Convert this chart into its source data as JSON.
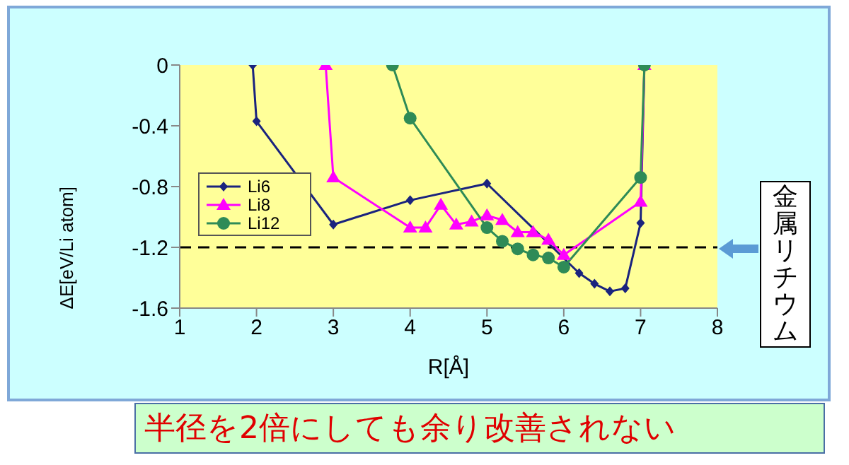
{
  "chart_data": {
    "type": "line",
    "xlabel": "R[Å]",
    "ylabel": "ΔE[eV/Li atom]",
    "xlim": [
      1,
      8
    ],
    "xticks": [
      1,
      2,
      3,
      4,
      5,
      6,
      7,
      8
    ],
    "ylim": [
      -1.6,
      0
    ],
    "yticks": [
      0,
      -0.4,
      -0.8,
      -1.2,
      -1.6
    ],
    "grid": false,
    "legend": "left",
    "series": [
      {
        "name": "Li6",
        "color": "#1a237e",
        "marker": "diamond",
        "x": [
          1.95,
          2,
          3,
          4,
          5,
          6,
          6.2,
          6.4,
          6.6,
          6.8,
          7,
          7.05
        ],
        "values": [
          0,
          -0.37,
          -1.05,
          -0.89,
          -0.78,
          null,
          -1.37,
          -1.44,
          -1.49,
          -1.47,
          -1.04,
          0
        ]
      },
      {
        "name": "Li8",
        "color": "#ff00ff",
        "marker": "triangle",
        "x": [
          2.9,
          3,
          4,
          4.2,
          4.4,
          4.6,
          4.8,
          5,
          5.2,
          5.4,
          5.6,
          5.8,
          6,
          7,
          7.05
        ],
        "values": [
          0,
          -0.74,
          -1.07,
          -1.07,
          -0.92,
          -1.05,
          -1.03,
          -0.99,
          -1.02,
          -1.1,
          -1.1,
          -1.15,
          -1.25,
          -0.9,
          0
        ]
      },
      {
        "name": "Li12",
        "color": "#2e8b57",
        "marker": "circle",
        "x": [
          3.77,
          4,
          5,
          5.2,
          5.4,
          5.6,
          5.8,
          6,
          7,
          7.05
        ],
        "values": [
          0,
          -0.35,
          -1.07,
          -1.16,
          -1.21,
          -1.25,
          -1.27,
          -1.33,
          -0.74,
          0
        ]
      }
    ],
    "ref_lines": [
      {
        "axis": "y",
        "value": -1.2,
        "color": "#000000",
        "line_style": "dashed"
      }
    ],
    "annotations": [
      "金属リチウム",
      "半径を2倍にしても余り改善されない"
    ]
  }
}
